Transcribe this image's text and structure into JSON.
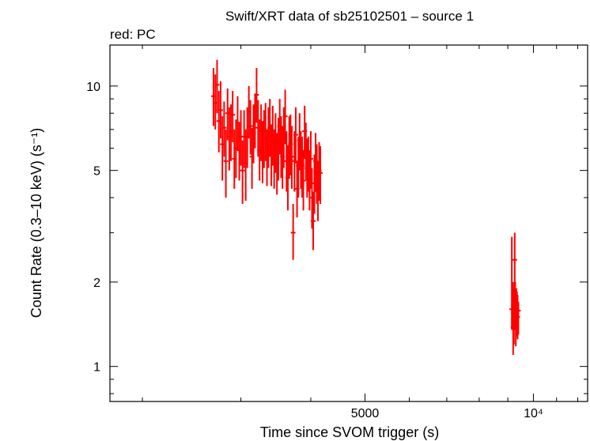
{
  "chart_data": {
    "type": "scatter",
    "title": "Swift/XRT data of sb25102501 – source 1",
    "subtitle": "red: PC",
    "xlabel": "Time since SVOM trigger (s)",
    "ylabel": "Count Rate (0.3–10 keV) (s⁻¹)",
    "x_scale": "log",
    "y_scale": "log",
    "xlim": [
      1750,
      12500
    ],
    "ylim": [
      0.75,
      14
    ],
    "x_ticks": [
      {
        "value": 5000,
        "label": "5000"
      },
      {
        "value": 10000,
        "label": "10⁴"
      }
    ],
    "y_ticks": [
      {
        "value": 1,
        "label": "1"
      },
      {
        "value": 2,
        "label": "2"
      },
      {
        "value": 5,
        "label": "5"
      },
      {
        "value": 10,
        "label": "10"
      }
    ],
    "colors": {
      "series": "#ff0000",
      "axes": "#000000"
    },
    "series": [
      {
        "points": [
          [
            2680,
            9.2,
            7.2,
            11.6
          ],
          [
            2700,
            8.7,
            7.0,
            11.0
          ],
          [
            2720,
            10.1,
            8.0,
            12.4
          ],
          [
            2740,
            7.5,
            5.8,
            9.6
          ],
          [
            2760,
            8.2,
            6.5,
            10.4
          ],
          [
            2780,
            6.2,
            4.6,
            7.8
          ],
          [
            2800,
            7.1,
            5.6,
            8.8
          ],
          [
            2820,
            5.4,
            4.0,
            7.0
          ],
          [
            2840,
            8.0,
            6.4,
            9.8
          ],
          [
            2860,
            6.6,
            5.0,
            8.4
          ],
          [
            2880,
            6.9,
            5.4,
            8.6
          ],
          [
            2900,
            7.9,
            6.3,
            9.6
          ],
          [
            2920,
            5.5,
            4.3,
            7.0
          ],
          [
            2940,
            6.0,
            4.7,
            7.6
          ],
          [
            2960,
            7.4,
            5.9,
            9.2
          ],
          [
            2980,
            5.9,
            4.6,
            7.4
          ],
          [
            3000,
            6.6,
            5.2,
            8.2
          ],
          [
            3020,
            5.0,
            3.8,
            6.4
          ],
          [
            3040,
            6.6,
            5.1,
            8.2
          ],
          [
            3060,
            5.3,
            3.9,
            7.0
          ],
          [
            3080,
            6.6,
            5.1,
            8.4
          ],
          [
            3100,
            8.1,
            6.5,
            10.0
          ],
          [
            3120,
            7.2,
            5.7,
            8.9
          ],
          [
            3140,
            5.6,
            4.3,
            7.1
          ],
          [
            3160,
            6.8,
            5.3,
            8.6
          ],
          [
            3180,
            7.6,
            6.0,
            9.4
          ],
          [
            3200,
            9.3,
            7.4,
            11.6
          ],
          [
            3220,
            7.1,
            5.6,
            8.9
          ],
          [
            3240,
            5.9,
            4.6,
            7.6
          ],
          [
            3260,
            6.9,
            5.4,
            8.6
          ],
          [
            3280,
            5.8,
            4.5,
            7.5
          ],
          [
            3300,
            6.5,
            5.1,
            8.2
          ],
          [
            3320,
            6.9,
            5.4,
            8.7
          ],
          [
            3340,
            5.6,
            4.4,
            7.0
          ],
          [
            3360,
            6.6,
            5.1,
            8.4
          ],
          [
            3380,
            7.1,
            5.6,
            9.0
          ],
          [
            3400,
            5.7,
            4.4,
            7.3
          ],
          [
            3420,
            6.7,
            5.2,
            8.5
          ],
          [
            3440,
            5.5,
            4.3,
            7.0
          ],
          [
            3460,
            6.3,
            4.9,
            8.0
          ],
          [
            3480,
            5.3,
            4.1,
            6.8
          ],
          [
            3500,
            6.0,
            4.6,
            7.7
          ],
          [
            3520,
            7.2,
            5.7,
            9.0
          ],
          [
            3540,
            6.1,
            4.7,
            7.8
          ],
          [
            3560,
            5.6,
            4.3,
            7.2
          ],
          [
            3580,
            6.6,
            5.1,
            8.4
          ],
          [
            3600,
            7.8,
            6.2,
            9.7
          ],
          [
            3620,
            5.4,
            4.2,
            6.9
          ],
          [
            3640,
            4.7,
            3.6,
            6.1
          ],
          [
            3660,
            6.1,
            4.7,
            7.8
          ],
          [
            3680,
            6.2,
            4.8,
            7.9
          ],
          [
            3700,
            5.6,
            4.3,
            7.2
          ],
          [
            3720,
            3.0,
            2.4,
            3.8
          ],
          [
            3740,
            5.4,
            4.2,
            6.9
          ],
          [
            3760,
            6.7,
            5.3,
            8.4
          ],
          [
            3780,
            4.3,
            3.4,
            5.4
          ],
          [
            3800,
            5.2,
            4.0,
            6.6
          ],
          [
            3820,
            6.4,
            5.0,
            8.0
          ],
          [
            3840,
            5.5,
            4.3,
            6.9
          ],
          [
            3860,
            5.2,
            4.0,
            6.6
          ],
          [
            3880,
            4.6,
            3.6,
            5.9
          ],
          [
            3900,
            6.9,
            5.5,
            8.5
          ],
          [
            3920,
            5.9,
            4.6,
            7.4
          ],
          [
            3940,
            5.1,
            4.0,
            6.5
          ],
          [
            3960,
            5.3,
            4.2,
            6.6
          ],
          [
            3980,
            4.6,
            3.6,
            5.9
          ],
          [
            4000,
            5.5,
            4.3,
            6.9
          ],
          [
            4020,
            4.0,
            3.1,
            5.1
          ],
          [
            4040,
            3.3,
            2.6,
            4.2
          ],
          [
            4060,
            4.5,
            3.5,
            5.7
          ],
          [
            4080,
            5.4,
            4.2,
            6.8
          ],
          [
            4100,
            4.9,
            3.8,
            6.2
          ],
          [
            4120,
            4.2,
            3.3,
            5.4
          ],
          [
            4140,
            5.0,
            3.9,
            6.3
          ],
          [
            4160,
            4.9,
            3.8,
            6.1
          ],
          [
            9150,
            1.6,
            1.35,
            2.9
          ],
          [
            9200,
            1.38,
            1.1,
            2.0
          ],
          [
            9230,
            1.45,
            1.2,
            1.9
          ],
          [
            9260,
            2.4,
            1.6,
            3.0
          ],
          [
            9280,
            1.65,
            1.35,
            2.0
          ],
          [
            9300,
            1.42,
            1.18,
            1.8
          ],
          [
            9320,
            1.55,
            1.28,
            1.9
          ],
          [
            9345,
            1.6,
            1.3,
            1.85
          ],
          [
            9370,
            1.5,
            1.25,
            1.8
          ],
          [
            9400,
            1.58,
            1.3,
            1.7
          ]
        ]
      }
    ]
  }
}
